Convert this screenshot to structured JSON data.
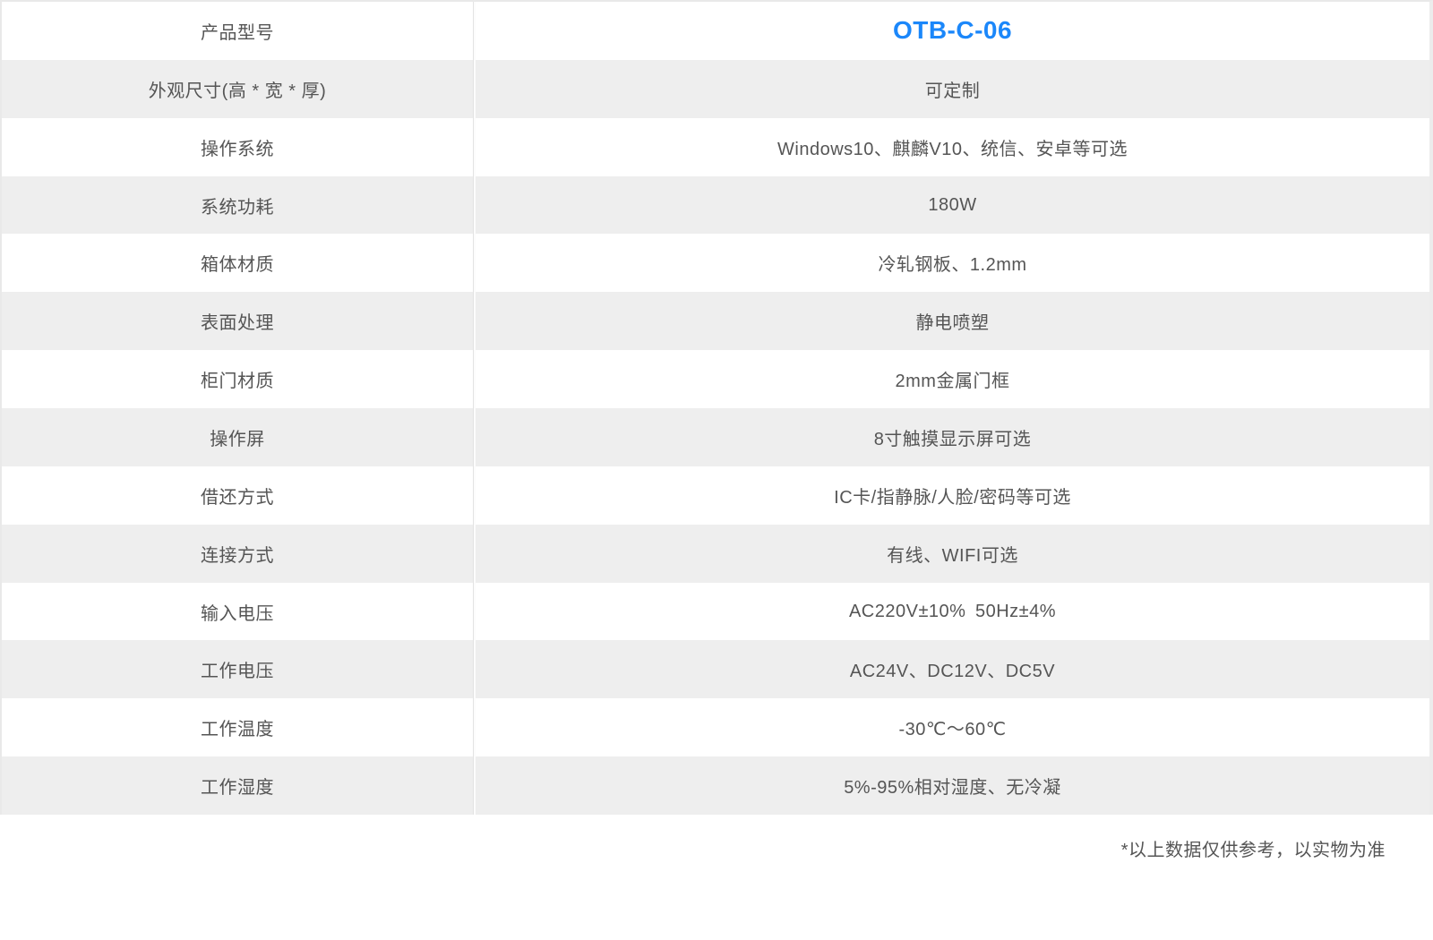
{
  "spec_table": {
    "rows": [
      {
        "label": "产品型号",
        "value": "OTB-C-06",
        "highlight": true
      },
      {
        "label": "外观尺寸(高 * 宽 * 厚)",
        "value": "可定制"
      },
      {
        "label": "操作系统",
        "value": "Windows10、麒麟V10、统信、安卓等可选"
      },
      {
        "label": "系统功耗",
        "value": "180W"
      },
      {
        "label": "箱体材质",
        "value": "冷轧钢板、1.2mm"
      },
      {
        "label": "表面处理",
        "value": "静电喷塑"
      },
      {
        "label": "柜门材质",
        "value": "2mm金属门框"
      },
      {
        "label": "操作屏",
        "value": "8寸触摸显示屏可选"
      },
      {
        "label": "借还方式",
        "value": "IC卡/指静脉/人脸/密码等可选"
      },
      {
        "label": "连接方式",
        "value": "有线、WIFI可选"
      },
      {
        "label": "输入电压",
        "value": "AC220V±10% 50Hz±4%"
      },
      {
        "label": "工作电压",
        "value": "AC24V、DC12V、DC5V"
      },
      {
        "label": "工作温度",
        "value": "-30℃～60℃"
      },
      {
        "label": "工作湿度",
        "value": "5%-95%相对湿度、无冷凝"
      }
    ]
  },
  "footnote": "*以上数据仅供参考，以实物为准",
  "colors": {
    "accent_blue": "#1b87fa",
    "row_alt_bg": "#eeeeee",
    "text_gray": "#555555",
    "border_gray": "#e9e9e9"
  }
}
